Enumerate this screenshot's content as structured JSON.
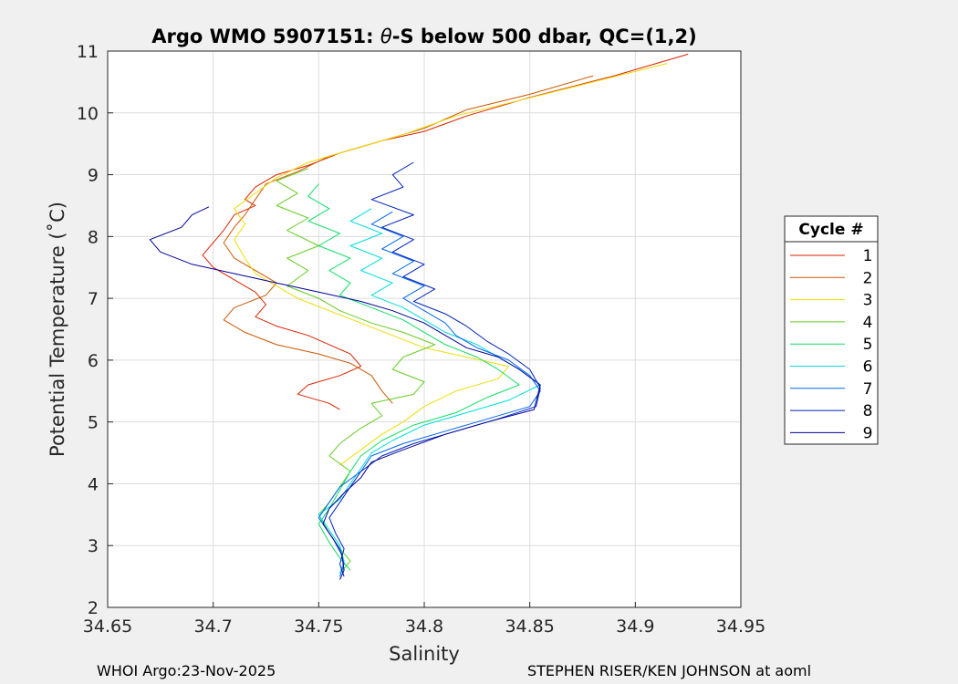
{
  "chart_data": {
    "type": "line",
    "title": "Argo WMO 5907151: θ-S below 500 dbar,  QC=(1,2)",
    "title_parts": {
      "prefix": "Argo WMO 5907151: ",
      "symbol": "θ",
      "suffix": "-S below 500 dbar,  QC=(1,2)"
    },
    "xlabel": "Salinity",
    "ylabel": "Potential Temperature (˚C)",
    "xlim": [
      34.65,
      34.95
    ],
    "ylim": [
      2,
      11
    ],
    "xticks": [
      "34.65",
      "34.7",
      "34.75",
      "34.8",
      "34.85",
      "34.9",
      "34.95"
    ],
    "yticks": [
      "2",
      "3",
      "4",
      "5",
      "6",
      "7",
      "8",
      "9",
      "10",
      "11"
    ],
    "grid": true,
    "legend": {
      "title": "Cycle #",
      "position": "right"
    },
    "series": [
      {
        "name": "1",
        "color": "#dd2200",
        "points": [
          [
            34.925,
            10.95
          ],
          [
            34.89,
            10.6
          ],
          [
            34.85,
            10.25
          ],
          [
            34.82,
            9.95
          ],
          [
            34.8,
            9.7
          ],
          [
            34.78,
            9.55
          ],
          [
            34.76,
            9.35
          ],
          [
            34.745,
            9.15
          ],
          [
            34.73,
            9.0
          ],
          [
            34.72,
            8.8
          ],
          [
            34.715,
            8.6
          ],
          [
            34.72,
            8.5
          ],
          [
            34.71,
            8.35
          ],
          [
            34.705,
            8.1
          ],
          [
            34.7,
            7.9
          ],
          [
            34.695,
            7.7
          ],
          [
            34.7,
            7.5
          ],
          [
            34.71,
            7.3
          ],
          [
            34.72,
            7.1
          ],
          [
            34.725,
            6.9
          ],
          [
            34.72,
            6.7
          ],
          [
            34.73,
            6.55
          ],
          [
            34.745,
            6.4
          ],
          [
            34.755,
            6.25
          ],
          [
            34.765,
            6.1
          ],
          [
            34.77,
            5.9
          ],
          [
            34.76,
            5.75
          ],
          [
            34.745,
            5.6
          ],
          [
            34.74,
            5.45
          ],
          [
            34.755,
            5.3
          ],
          [
            34.76,
            5.2
          ]
        ]
      },
      {
        "name": "2",
        "color": "#cc5500",
        "points": [
          [
            34.88,
            10.6
          ],
          [
            34.85,
            10.3
          ],
          [
            34.82,
            10.05
          ],
          [
            34.8,
            9.75
          ],
          [
            34.78,
            9.55
          ],
          [
            34.755,
            9.3
          ],
          [
            34.74,
            9.05
          ],
          [
            34.725,
            8.85
          ],
          [
            34.72,
            8.6
          ],
          [
            34.715,
            8.35
          ],
          [
            34.71,
            8.15
          ],
          [
            34.705,
            7.9
          ],
          [
            34.71,
            7.65
          ],
          [
            34.72,
            7.45
          ],
          [
            34.73,
            7.25
          ],
          [
            34.725,
            7.05
          ],
          [
            34.71,
            6.85
          ],
          [
            34.705,
            6.65
          ],
          [
            34.715,
            6.45
          ],
          [
            34.73,
            6.25
          ],
          [
            34.75,
            6.1
          ],
          [
            34.765,
            5.95
          ],
          [
            34.775,
            5.75
          ],
          [
            34.78,
            5.5
          ],
          [
            34.785,
            5.3
          ]
        ]
      },
      {
        "name": "3",
        "color": "#eedd00",
        "points": [
          [
            34.915,
            10.8
          ],
          [
            34.88,
            10.5
          ],
          [
            34.845,
            10.2
          ],
          [
            34.815,
            9.95
          ],
          [
            34.79,
            9.65
          ],
          [
            34.765,
            9.4
          ],
          [
            34.745,
            9.2
          ],
          [
            34.73,
            8.95
          ],
          [
            34.72,
            8.7
          ],
          [
            34.71,
            8.45
          ],
          [
            34.715,
            8.2
          ],
          [
            34.71,
            7.95
          ],
          [
            34.715,
            7.65
          ],
          [
            34.72,
            7.4
          ],
          [
            34.73,
            7.2
          ],
          [
            34.74,
            7.0
          ],
          [
            34.755,
            6.8
          ],
          [
            34.77,
            6.6
          ],
          [
            34.785,
            6.4
          ],
          [
            34.8,
            6.2
          ],
          [
            34.82,
            6.05
          ],
          [
            34.84,
            5.9
          ],
          [
            34.835,
            5.7
          ],
          [
            34.815,
            5.5
          ],
          [
            34.8,
            5.25
          ],
          [
            34.79,
            5.0
          ],
          [
            34.78,
            4.8
          ],
          [
            34.77,
            4.55
          ],
          [
            34.76,
            4.3
          ]
        ]
      },
      {
        "name": "4",
        "color": "#66cc22",
        "points": [
          [
            34.745,
            9.1
          ],
          [
            34.73,
            8.9
          ],
          [
            34.74,
            8.7
          ],
          [
            34.73,
            8.5
          ],
          [
            34.745,
            8.3
          ],
          [
            34.735,
            8.1
          ],
          [
            34.75,
            7.85
          ],
          [
            34.735,
            7.65
          ],
          [
            34.745,
            7.45
          ],
          [
            34.735,
            7.2
          ],
          [
            34.75,
            7.0
          ],
          [
            34.76,
            6.8
          ],
          [
            34.775,
            6.6
          ],
          [
            34.79,
            6.45
          ],
          [
            34.805,
            6.25
          ],
          [
            34.79,
            6.05
          ],
          [
            34.785,
            5.85
          ],
          [
            34.8,
            5.65
          ],
          [
            34.795,
            5.45
          ],
          [
            34.775,
            5.3
          ],
          [
            34.78,
            5.1
          ],
          [
            34.77,
            4.9
          ],
          [
            34.76,
            4.65
          ],
          [
            34.755,
            4.45
          ],
          [
            34.765,
            4.2
          ],
          [
            34.76,
            3.95
          ],
          [
            34.755,
            3.7
          ],
          [
            34.75,
            3.5
          ],
          [
            34.755,
            3.2
          ],
          [
            34.76,
            2.95
          ],
          [
            34.765,
            2.75
          ],
          [
            34.76,
            2.55
          ]
        ]
      },
      {
        "name": "5",
        "color": "#11dd66",
        "points": [
          [
            34.75,
            8.85
          ],
          [
            34.745,
            8.65
          ],
          [
            34.755,
            8.45
          ],
          [
            34.745,
            8.25
          ],
          [
            34.76,
            8.05
          ],
          [
            34.75,
            7.85
          ],
          [
            34.765,
            7.65
          ],
          [
            34.755,
            7.45
          ],
          [
            34.765,
            7.25
          ],
          [
            34.76,
            7.05
          ],
          [
            34.775,
            6.85
          ],
          [
            34.79,
            6.65
          ],
          [
            34.8,
            6.45
          ],
          [
            34.81,
            6.25
          ],
          [
            34.825,
            6.05
          ],
          [
            34.835,
            5.85
          ],
          [
            34.845,
            5.6
          ],
          [
            34.83,
            5.4
          ],
          [
            34.815,
            5.15
          ],
          [
            34.795,
            4.95
          ],
          [
            34.78,
            4.7
          ],
          [
            34.77,
            4.45
          ],
          [
            34.765,
            4.2
          ],
          [
            34.76,
            3.9
          ],
          [
            34.755,
            3.6
          ],
          [
            34.75,
            3.35
          ],
          [
            34.755,
            3.05
          ],
          [
            34.76,
            2.8
          ],
          [
            34.765,
            2.6
          ]
        ]
      },
      {
        "name": "6",
        "color": "#00dddd",
        "points": [
          [
            34.775,
            8.45
          ],
          [
            34.765,
            8.25
          ],
          [
            34.78,
            8.05
          ],
          [
            34.765,
            7.85
          ],
          [
            34.78,
            7.65
          ],
          [
            34.77,
            7.45
          ],
          [
            34.785,
            7.25
          ],
          [
            34.775,
            7.05
          ],
          [
            34.79,
            6.85
          ],
          [
            34.8,
            6.65
          ],
          [
            34.81,
            6.45
          ],
          [
            34.825,
            6.25
          ],
          [
            34.835,
            6.05
          ],
          [
            34.845,
            5.85
          ],
          [
            34.855,
            5.6
          ],
          [
            34.84,
            5.35
          ],
          [
            34.82,
            5.15
          ],
          [
            34.8,
            4.95
          ],
          [
            34.785,
            4.7
          ],
          [
            34.775,
            4.5
          ],
          [
            34.77,
            4.25
          ],
          [
            34.765,
            4.0
          ],
          [
            34.76,
            3.75
          ],
          [
            34.75,
            3.5
          ],
          [
            34.755,
            3.25
          ],
          [
            34.76,
            3.0
          ],
          [
            34.762,
            2.75
          ],
          [
            34.76,
            2.55
          ]
        ]
      },
      {
        "name": "7",
        "color": "#0066ee",
        "points": [
          [
            34.785,
            8.4
          ],
          [
            34.775,
            8.2
          ],
          [
            34.79,
            8.0
          ],
          [
            34.78,
            7.8
          ],
          [
            34.795,
            7.6
          ],
          [
            34.785,
            7.4
          ],
          [
            34.8,
            7.2
          ],
          [
            34.79,
            7.0
          ],
          [
            34.8,
            6.8
          ],
          [
            34.81,
            6.6
          ],
          [
            34.815,
            6.4
          ],
          [
            34.825,
            6.2
          ],
          [
            34.84,
            6.0
          ],
          [
            34.85,
            5.75
          ],
          [
            34.855,
            5.5
          ],
          [
            34.85,
            5.25
          ],
          [
            34.83,
            5.05
          ],
          [
            34.81,
            4.85
          ],
          [
            34.79,
            4.65
          ],
          [
            34.775,
            4.45
          ],
          [
            34.77,
            4.2
          ],
          [
            34.76,
            3.95
          ],
          [
            34.755,
            3.7
          ],
          [
            34.75,
            3.45
          ],
          [
            34.755,
            3.2
          ],
          [
            34.76,
            2.95
          ],
          [
            34.762,
            2.7
          ],
          [
            34.76,
            2.5
          ]
        ]
      },
      {
        "name": "8",
        "color": "#0022bb",
        "points": [
          [
            34.795,
            9.2
          ],
          [
            34.785,
            9.0
          ],
          [
            34.79,
            8.8
          ],
          [
            34.775,
            8.6
          ],
          [
            34.795,
            8.35
          ],
          [
            34.78,
            8.15
          ],
          [
            34.795,
            7.95
          ],
          [
            34.785,
            7.75
          ],
          [
            34.8,
            7.55
          ],
          [
            34.79,
            7.35
          ],
          [
            34.805,
            7.15
          ],
          [
            34.795,
            6.95
          ],
          [
            34.81,
            6.75
          ],
          [
            34.82,
            6.55
          ],
          [
            34.83,
            6.3
          ],
          [
            34.84,
            6.1
          ],
          [
            34.85,
            5.85
          ],
          [
            34.855,
            5.55
          ],
          [
            34.853,
            5.25
          ],
          [
            34.835,
            5.05
          ],
          [
            34.815,
            4.85
          ],
          [
            34.795,
            4.65
          ],
          [
            34.78,
            4.45
          ],
          [
            34.77,
            4.2
          ],
          [
            34.765,
            3.95
          ],
          [
            34.76,
            3.7
          ],
          [
            34.755,
            3.45
          ],
          [
            34.758,
            3.2
          ],
          [
            34.762,
            2.95
          ],
          [
            34.76,
            2.7
          ],
          [
            34.762,
            2.5
          ]
        ]
      },
      {
        "name": "9",
        "color": "#000099",
        "points": [
          [
            34.698,
            8.48
          ],
          [
            34.69,
            8.35
          ],
          [
            34.685,
            8.15
          ],
          [
            34.67,
            7.95
          ],
          [
            34.675,
            7.75
          ],
          [
            34.69,
            7.55
          ],
          [
            34.71,
            7.4
          ],
          [
            34.73,
            7.25
          ],
          [
            34.75,
            7.1
          ],
          [
            34.77,
            6.95
          ],
          [
            34.785,
            6.8
          ],
          [
            34.8,
            6.6
          ],
          [
            34.81,
            6.4
          ],
          [
            34.82,
            6.2
          ],
          [
            34.835,
            6.05
          ],
          [
            34.845,
            5.85
          ],
          [
            34.855,
            5.6
          ],
          [
            34.852,
            5.2
          ],
          [
            34.83,
            5.0
          ],
          [
            34.81,
            4.8
          ],
          [
            34.79,
            4.55
          ],
          [
            34.775,
            4.35
          ],
          [
            34.77,
            4.1
          ],
          [
            34.762,
            3.85
          ],
          [
            34.755,
            3.6
          ],
          [
            34.752,
            3.35
          ],
          [
            34.757,
            3.1
          ],
          [
            34.761,
            2.85
          ],
          [
            34.762,
            2.6
          ],
          [
            34.76,
            2.45
          ]
        ]
      }
    ]
  },
  "footer": {
    "left": "WHOI Argo:23-Nov-2025",
    "right": "STEPHEN RISER/KEN JOHNSON at aoml"
  }
}
